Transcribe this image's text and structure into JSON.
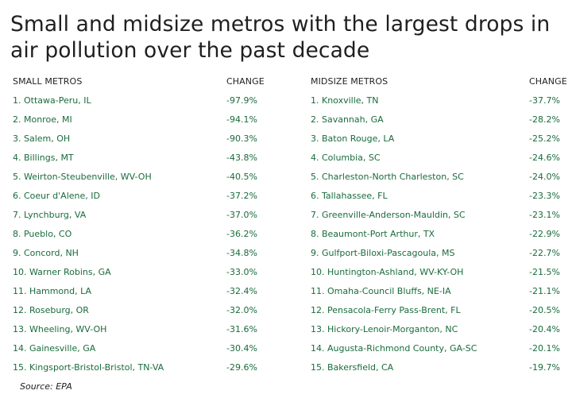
{
  "title": "Small and midsize metros with the largest drops in air pollution over the past decade",
  "small": {
    "header_name": "SMALL METROS",
    "header_change": "CHANGE",
    "rows": [
      {
        "name": "1. Ottawa-Peru, IL",
        "change": "-97.9%"
      },
      {
        "name": "2. Monroe, MI",
        "change": "-94.1%"
      },
      {
        "name": "3. Salem, OH",
        "change": "-90.3%"
      },
      {
        "name": "4. Billings, MT",
        "change": "-43.8%"
      },
      {
        "name": "5. Weirton-Steubenville, WV-OH",
        "change": "-40.5%"
      },
      {
        "name": "6. Coeur d'Alene, ID",
        "change": "-37.2%"
      },
      {
        "name": "7. Lynchburg, VA",
        "change": "-37.0%"
      },
      {
        "name": "8. Pueblo, CO",
        "change": "-36.2%"
      },
      {
        "name": "9. Concord, NH",
        "change": "-34.8%"
      },
      {
        "name": "10. Warner Robins, GA",
        "change": "-33.0%"
      },
      {
        "name": "11. Hammond, LA",
        "change": "-32.4%"
      },
      {
        "name": "12. Roseburg, OR",
        "change": "-32.0%"
      },
      {
        "name": "13. Wheeling, WV-OH",
        "change": "-31.6%"
      },
      {
        "name": "14. Gainesville, GA",
        "change": "-30.4%"
      },
      {
        "name": "15. Kingsport-Bristol-Bristol, TN-VA",
        "change": "-29.6%"
      }
    ]
  },
  "midsize": {
    "header_name": "MIDSIZE METROS",
    "header_change": "CHANGE",
    "rows": [
      {
        "name": "1. Knoxville, TN",
        "change": "-37.7%"
      },
      {
        "name": "2. Savannah, GA",
        "change": "-28.2%"
      },
      {
        "name": "3. Baton Rouge, LA",
        "change": "-25.2%"
      },
      {
        "name": "4. Columbia, SC",
        "change": "-24.6%"
      },
      {
        "name": "5. Charleston-North Charleston, SC",
        "change": "-24.0%"
      },
      {
        "name": "6. Tallahassee, FL",
        "change": "-23.3%"
      },
      {
        "name": "7. Greenville-Anderson-Mauldin, SC",
        "change": "-23.1%"
      },
      {
        "name": "8. Beaumont-Port Arthur, TX",
        "change": "-22.9%"
      },
      {
        "name": "9. Gulfport-Biloxi-Pascagoula, MS",
        "change": "-22.7%"
      },
      {
        "name": "10. Huntington-Ashland, WV-KY-OH",
        "change": "-21.5%"
      },
      {
        "name": "11. Omaha-Council Bluffs, NE-IA",
        "change": "-21.1%"
      },
      {
        "name": "12. Pensacola-Ferry Pass-Brent, FL",
        "change": "-20.5%"
      },
      {
        "name": "13. Hickory-Lenoir-Morganton, NC",
        "change": "-20.4%"
      },
      {
        "name": "14. Augusta-Richmond County, GA-SC",
        "change": "-20.1%"
      },
      {
        "name": "15. Bakersfield, CA",
        "change": "-19.7%"
      }
    ]
  },
  "source": "Source: EPA",
  "colors": {
    "row_text": "#1a6b3c",
    "header_text": "#1f1f1f"
  }
}
